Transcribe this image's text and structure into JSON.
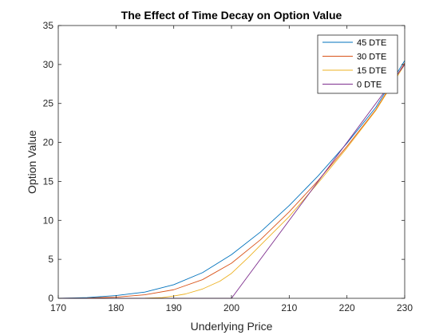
{
  "chart_data": {
    "type": "line",
    "title": "The Effect of Time Decay on Option Value",
    "xlabel": "Underlying Price",
    "ylabel": "Option Value",
    "xlim": [
      170,
      230
    ],
    "ylim": [
      0,
      35
    ],
    "xticks": [
      170,
      180,
      190,
      200,
      210,
      220,
      230
    ],
    "yticks": [
      0,
      5,
      10,
      15,
      20,
      25,
      30,
      35
    ],
    "grid": false,
    "legend_position": "top-right",
    "series": [
      {
        "name": "45 DTE",
        "color": "#0072BD",
        "x": [
          170,
          175,
          180,
          185,
          190,
          195,
          200,
          205,
          210,
          215,
          220,
          225,
          230
        ],
        "y": [
          0.0,
          0.1,
          0.35,
          0.8,
          1.75,
          3.3,
          5.6,
          8.5,
          11.9,
          15.7,
          19.9,
          24.5,
          30.5
        ]
      },
      {
        "name": "30 DTE",
        "color": "#D95319",
        "x": [
          170,
          175,
          180,
          185,
          190,
          195,
          200,
          205,
          210,
          215,
          220,
          225,
          230
        ],
        "y": [
          0.0,
          0.03,
          0.15,
          0.45,
          1.1,
          2.4,
          4.5,
          7.5,
          11.1,
          15.1,
          19.5,
          24.2,
          30.2
        ]
      },
      {
        "name": "15 DTE",
        "color": "#EDB120",
        "x": [
          170,
          180,
          185,
          188,
          190,
          192,
          195,
          198,
          200,
          203,
          205,
          210,
          215,
          220,
          225,
          230
        ],
        "y": [
          0.0,
          0.0,
          0.02,
          0.1,
          0.3,
          0.55,
          1.2,
          2.2,
          3.2,
          5.3,
          6.8,
          10.5,
          14.8,
          19.3,
          24.1,
          30.0
        ]
      },
      {
        "name": "0 DTE",
        "color": "#7E2F8E",
        "x": [
          170,
          200,
          230
        ],
        "y": [
          0.0,
          0.0,
          30.0
        ]
      }
    ]
  }
}
